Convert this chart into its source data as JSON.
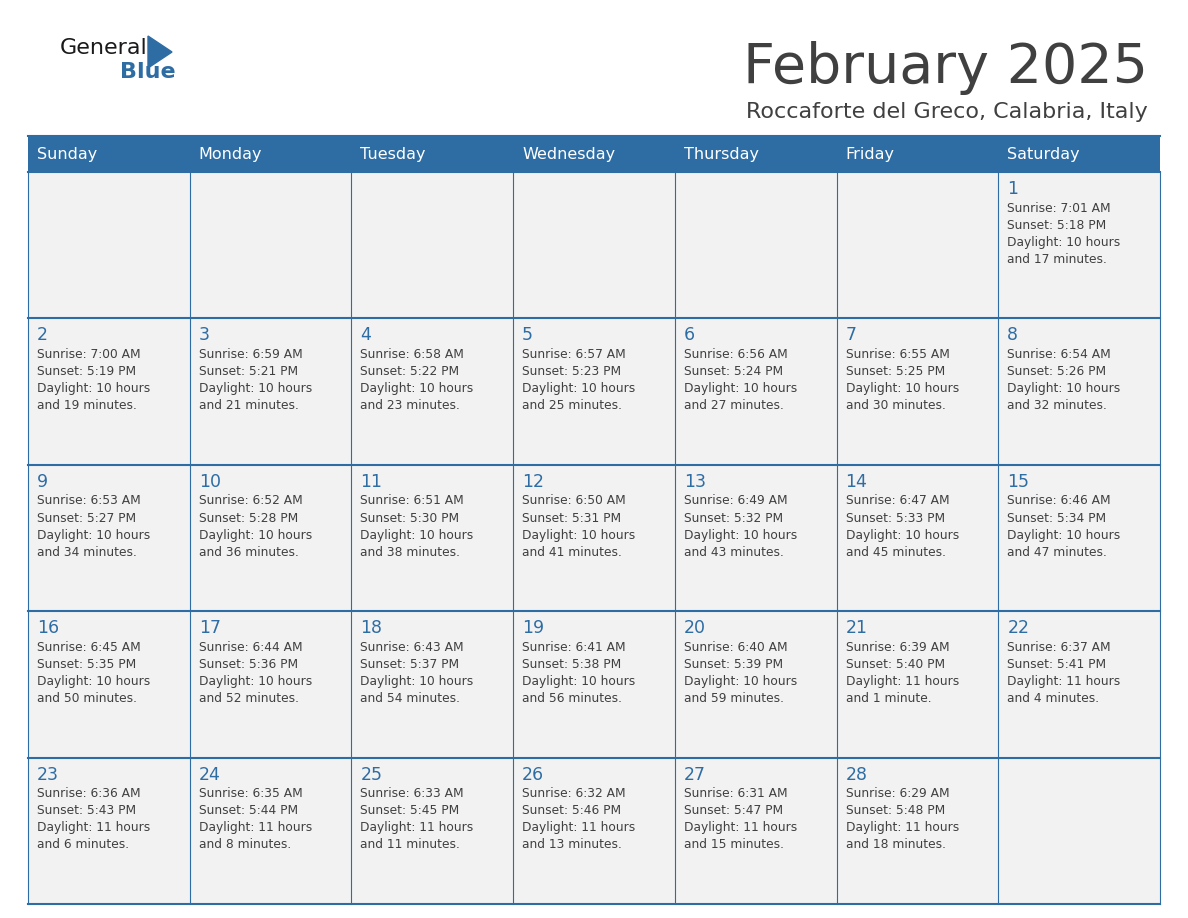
{
  "title": "February 2025",
  "subtitle": "Roccaforte del Greco, Calabria, Italy",
  "days_of_week": [
    "Sunday",
    "Monday",
    "Tuesday",
    "Wednesday",
    "Thursday",
    "Friday",
    "Saturday"
  ],
  "header_bg": "#2E6DA4",
  "header_text": "#FFFFFF",
  "cell_bg": "#F2F2F2",
  "day_num_color": "#2E6DA4",
  "text_color": "#404040",
  "line_color": "#2E6DA4",
  "logo_general_color": "#1a1a1a",
  "logo_blue_color": "#2E6DA4",
  "weeks": [
    [
      {
        "day": null,
        "sunrise": null,
        "sunset": null,
        "daylight": null
      },
      {
        "day": null,
        "sunrise": null,
        "sunset": null,
        "daylight": null
      },
      {
        "day": null,
        "sunrise": null,
        "sunset": null,
        "daylight": null
      },
      {
        "day": null,
        "sunrise": null,
        "sunset": null,
        "daylight": null
      },
      {
        "day": null,
        "sunrise": null,
        "sunset": null,
        "daylight": null
      },
      {
        "day": null,
        "sunrise": null,
        "sunset": null,
        "daylight": null
      },
      {
        "day": 1,
        "sunrise": "7:01 AM",
        "sunset": "5:18 PM",
        "daylight": "10 hours\nand 17 minutes."
      }
    ],
    [
      {
        "day": 2,
        "sunrise": "7:00 AM",
        "sunset": "5:19 PM",
        "daylight": "10 hours\nand 19 minutes."
      },
      {
        "day": 3,
        "sunrise": "6:59 AM",
        "sunset": "5:21 PM",
        "daylight": "10 hours\nand 21 minutes."
      },
      {
        "day": 4,
        "sunrise": "6:58 AM",
        "sunset": "5:22 PM",
        "daylight": "10 hours\nand 23 minutes."
      },
      {
        "day": 5,
        "sunrise": "6:57 AM",
        "sunset": "5:23 PM",
        "daylight": "10 hours\nand 25 minutes."
      },
      {
        "day": 6,
        "sunrise": "6:56 AM",
        "sunset": "5:24 PM",
        "daylight": "10 hours\nand 27 minutes."
      },
      {
        "day": 7,
        "sunrise": "6:55 AM",
        "sunset": "5:25 PM",
        "daylight": "10 hours\nand 30 minutes."
      },
      {
        "day": 8,
        "sunrise": "6:54 AM",
        "sunset": "5:26 PM",
        "daylight": "10 hours\nand 32 minutes."
      }
    ],
    [
      {
        "day": 9,
        "sunrise": "6:53 AM",
        "sunset": "5:27 PM",
        "daylight": "10 hours\nand 34 minutes."
      },
      {
        "day": 10,
        "sunrise": "6:52 AM",
        "sunset": "5:28 PM",
        "daylight": "10 hours\nand 36 minutes."
      },
      {
        "day": 11,
        "sunrise": "6:51 AM",
        "sunset": "5:30 PM",
        "daylight": "10 hours\nand 38 minutes."
      },
      {
        "day": 12,
        "sunrise": "6:50 AM",
        "sunset": "5:31 PM",
        "daylight": "10 hours\nand 41 minutes."
      },
      {
        "day": 13,
        "sunrise": "6:49 AM",
        "sunset": "5:32 PM",
        "daylight": "10 hours\nand 43 minutes."
      },
      {
        "day": 14,
        "sunrise": "6:47 AM",
        "sunset": "5:33 PM",
        "daylight": "10 hours\nand 45 minutes."
      },
      {
        "day": 15,
        "sunrise": "6:46 AM",
        "sunset": "5:34 PM",
        "daylight": "10 hours\nand 47 minutes."
      }
    ],
    [
      {
        "day": 16,
        "sunrise": "6:45 AM",
        "sunset": "5:35 PM",
        "daylight": "10 hours\nand 50 minutes."
      },
      {
        "day": 17,
        "sunrise": "6:44 AM",
        "sunset": "5:36 PM",
        "daylight": "10 hours\nand 52 minutes."
      },
      {
        "day": 18,
        "sunrise": "6:43 AM",
        "sunset": "5:37 PM",
        "daylight": "10 hours\nand 54 minutes."
      },
      {
        "day": 19,
        "sunrise": "6:41 AM",
        "sunset": "5:38 PM",
        "daylight": "10 hours\nand 56 minutes."
      },
      {
        "day": 20,
        "sunrise": "6:40 AM",
        "sunset": "5:39 PM",
        "daylight": "10 hours\nand 59 minutes."
      },
      {
        "day": 21,
        "sunrise": "6:39 AM",
        "sunset": "5:40 PM",
        "daylight": "11 hours\nand 1 minute."
      },
      {
        "day": 22,
        "sunrise": "6:37 AM",
        "sunset": "5:41 PM",
        "daylight": "11 hours\nand 4 minutes."
      }
    ],
    [
      {
        "day": 23,
        "sunrise": "6:36 AM",
        "sunset": "5:43 PM",
        "daylight": "11 hours\nand 6 minutes."
      },
      {
        "day": 24,
        "sunrise": "6:35 AM",
        "sunset": "5:44 PM",
        "daylight": "11 hours\nand 8 minutes."
      },
      {
        "day": 25,
        "sunrise": "6:33 AM",
        "sunset": "5:45 PM",
        "daylight": "11 hours\nand 11 minutes."
      },
      {
        "day": 26,
        "sunrise": "6:32 AM",
        "sunset": "5:46 PM",
        "daylight": "11 hours\nand 13 minutes."
      },
      {
        "day": 27,
        "sunrise": "6:31 AM",
        "sunset": "5:47 PM",
        "daylight": "11 hours\nand 15 minutes."
      },
      {
        "day": 28,
        "sunrise": "6:29 AM",
        "sunset": "5:48 PM",
        "daylight": "11 hours\nand 18 minutes."
      },
      {
        "day": null,
        "sunrise": null,
        "sunset": null,
        "daylight": null
      }
    ]
  ]
}
